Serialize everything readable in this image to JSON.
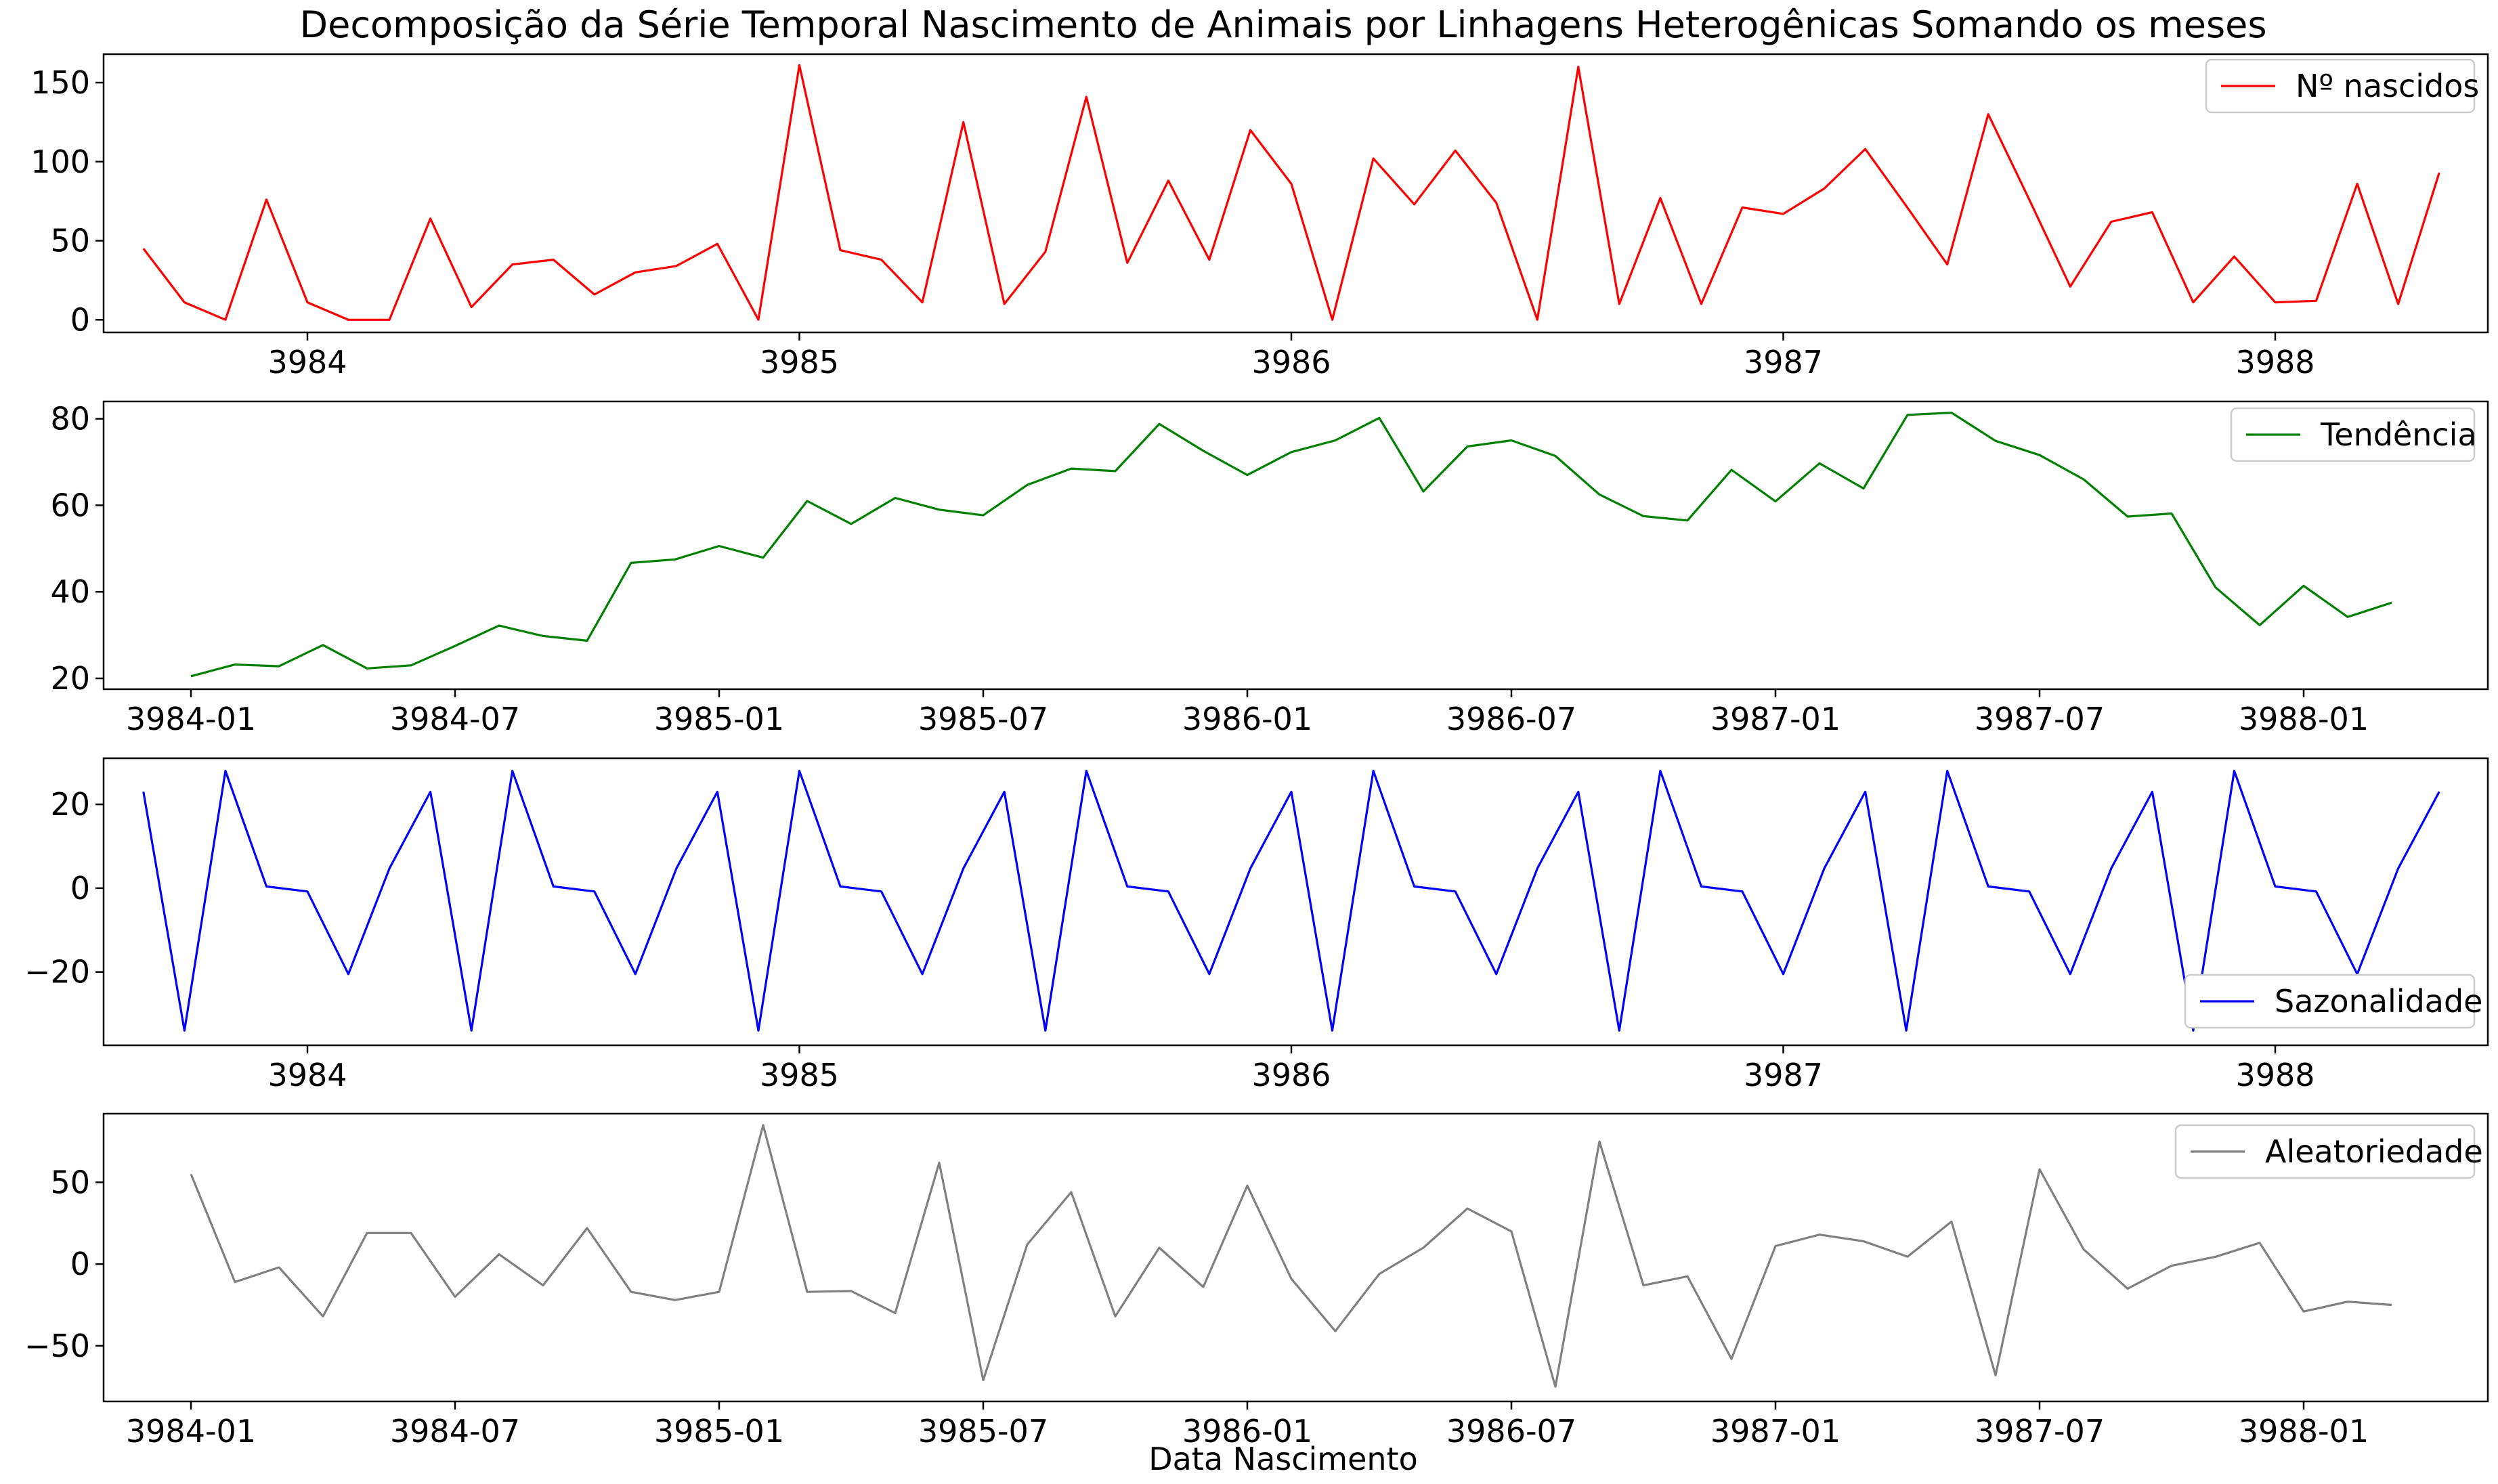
{
  "figure": {
    "title": "Decomposição da Série Temporal Nascimento de Animais por Linhagens Heterogênicas Somando os meses",
    "xlabel": "Data Nascimento"
  },
  "chart_data": [
    {
      "type": "line",
      "title": "",
      "xlabel": "",
      "ylabel": "",
      "x_start": "3983-09",
      "x_tick_labels": [
        "3984",
        "3985",
        "3986",
        "3987",
        "3988"
      ],
      "y_tick_labels": [
        "0",
        "50",
        "100",
        "150"
      ],
      "ylim": [
        -8,
        168
      ],
      "grid": false,
      "legend_position": "top-right",
      "series": [
        {
          "name": "Nº nascidos",
          "color": "#ff0000",
          "values": [
            45,
            11,
            0,
            76,
            11,
            0,
            0,
            64,
            8,
            35,
            38,
            16,
            30,
            34,
            48,
            0,
            161,
            44,
            38,
            11,
            125,
            10,
            43,
            141,
            36,
            88,
            38,
            120,
            86,
            0,
            102,
            73,
            107,
            74,
            0,
            160,
            10,
            77,
            10,
            71,
            67,
            83,
            108,
            72,
            35,
            130,
            76,
            21,
            62,
            68,
            11,
            40,
            11,
            12,
            86,
            10,
            93
          ]
        }
      ]
    },
    {
      "type": "line",
      "title": "",
      "xlabel": "",
      "ylabel": "",
      "x_start": "3984-01",
      "x_tick_labels": [
        "3984-01",
        "3984-07",
        "3985-01",
        "3985-07",
        "3986-01",
        "3986-07",
        "3987-01",
        "3987-07",
        "3988-01"
      ],
      "y_tick_labels": [
        "20",
        "40",
        "60",
        "80"
      ],
      "ylim": [
        17.5,
        84
      ],
      "grid": false,
      "legend_position": "top-right",
      "series": [
        {
          "name": "Tendência",
          "color": "#008000",
          "values": [
            20.5,
            23.2,
            22.8,
            27.7,
            22.3,
            23,
            27.5,
            32.2,
            29.8,
            28.7,
            46.7,
            47.5,
            50.6,
            47.9,
            61,
            55.7,
            61.7,
            59,
            57.7,
            64.7,
            68.5,
            67.9,
            78.8,
            72.6,
            67,
            72.3,
            75,
            80.2,
            63.2,
            73.6,
            75,
            71.4,
            62.5,
            57.5,
            56.5,
            68.2,
            60.9,
            69.7,
            63.9,
            80.9,
            81.4,
            74.9,
            71.6,
            66,
            57.4,
            58.1,
            41,
            32.3,
            41.4,
            34.2,
            37.5
          ]
        }
      ]
    },
    {
      "type": "line",
      "title": "",
      "xlabel": "",
      "ylabel": "",
      "x_start": "3983-09",
      "x_tick_labels": [
        "3984",
        "3985",
        "3986",
        "3987",
        "3988"
      ],
      "y_tick_labels": [
        "−20",
        "0",
        "20"
      ],
      "ylim": [
        -37.5,
        31
      ],
      "grid": false,
      "legend_position": "lower-right",
      "series": [
        {
          "name": "Sazonalidade",
          "color": "#0000ff",
          "values": [
            23,
            -34,
            28,
            0.4,
            -0.8,
            -20.5,
            4.7,
            23,
            -34,
            28,
            0.4,
            -0.8,
            -20.5,
            4.7,
            23,
            -34,
            28,
            0.4,
            -0.8,
            -20.5,
            4.7,
            23,
            -34,
            28,
            0.4,
            -0.8,
            -20.5,
            4.7,
            23,
            -34,
            28,
            0.4,
            -0.8,
            -20.5,
            4.7,
            23,
            -34,
            28,
            0.4,
            -0.8,
            -20.5,
            4.7,
            23,
            -34,
            28,
            0.4,
            -0.8,
            -20.5,
            4.7,
            23,
            -34,
            28,
            0.4,
            -0.8,
            -20.5,
            4.7,
            23
          ]
        }
      ]
    },
    {
      "type": "line",
      "title": "",
      "xlabel": "Data Nascimento",
      "ylabel": "",
      "x_start": "3984-01",
      "x_tick_labels": [
        "3984-01",
        "3984-07",
        "3985-01",
        "3985-07",
        "3986-01",
        "3986-07",
        "3987-01",
        "3987-07",
        "3988-01"
      ],
      "y_tick_labels": [
        "−50",
        "0",
        "50"
      ],
      "ylim": [
        -84,
        92
      ],
      "grid": false,
      "legend_position": "top-right",
      "series": [
        {
          "name": "Aleatoriedade",
          "color": "#808080",
          "values": [
            55,
            -11,
            -2,
            -32,
            19,
            19,
            -20,
            6,
            -13,
            22,
            -17,
            -22,
            -17,
            85,
            -17,
            -16.5,
            -30,
            62,
            -71,
            12,
            44,
            -32,
            10,
            -14,
            48,
            -9,
            -41,
            -6,
            10,
            34,
            20,
            -75,
            75,
            -13,
            -7.5,
            -58,
            11,
            18,
            14,
            4.5,
            26,
            -68,
            58,
            9,
            -15,
            -1,
            4.5,
            13,
            -29,
            -23,
            -25
          ]
        }
      ]
    }
  ]
}
